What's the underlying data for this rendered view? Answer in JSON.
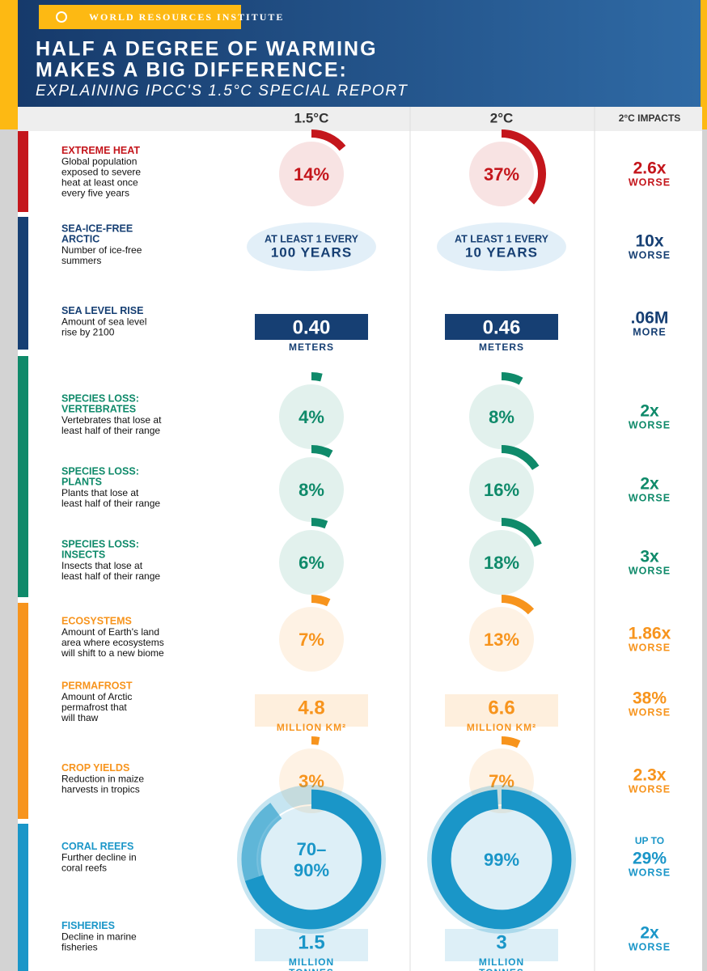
{
  "header": {
    "brand": "WORLD RESOURCES INSTITUTE",
    "title": [
      "HALF A DEGREE OF WARMING",
      "MAKES A BIG DIFFERENCE:"
    ],
    "subtitle": "EXPLAINING IPCC'S 1.5°C SPECIAL REPORT"
  },
  "columns": [
    "1.5°C",
    "2°C",
    "2°C IMPACTS"
  ],
  "rows": [
    {
      "color": "#c4161c",
      "title": [
        "EXTREME HEAT"
      ],
      "desc": [
        "Global population",
        "exposed to severe",
        "heat at least once",
        "every five years"
      ],
      "low": {
        "main": [
          "14%"
        ],
        "gauge": 14
      },
      "high": {
        "main": [
          "37%"
        ],
        "gauge": 37
      },
      "impact": {
        "main": "2.6x",
        "post": "WORSE"
      }
    },
    {
      "color": "#163f73",
      "title": [
        "SEA-ICE-FREE",
        "ARCTIC"
      ],
      "desc": [
        "Number of ice-free",
        "summers"
      ],
      "low": {
        "top": "AT LEAST 1 EVERY",
        "main": [
          "100 YEARS"
        ]
      },
      "high": {
        "top": "AT LEAST 1 EVERY",
        "main": [
          "10 YEARS"
        ]
      },
      "impact": {
        "main": "10x",
        "post": "WORSE"
      }
    },
    {
      "color": "#163f73",
      "title": [
        "SEA LEVEL RISE"
      ],
      "desc": [
        "Amount of sea level",
        "rise by 2100"
      ],
      "low": {
        "main": [
          "0.40"
        ],
        "unit": [
          "METERS"
        ]
      },
      "high": {
        "main": [
          "0.46"
        ],
        "unit": [
          "METERS"
        ]
      },
      "impact": {
        "main": ".06M",
        "post": "MORE"
      }
    },
    {
      "color": "#0f8a6a",
      "title": [
        "SPECIES LOSS:",
        "VERTEBRATES"
      ],
      "desc": [
        "Vertebrates that lose at",
        "least half of their range"
      ],
      "low": {
        "main": [
          "4%"
        ],
        "gauge": 4
      },
      "high": {
        "main": [
          "8%"
        ],
        "gauge": 8
      },
      "impact": {
        "main": "2x",
        "post": "WORSE"
      }
    },
    {
      "color": "#0f8a6a",
      "title": [
        "SPECIES LOSS:",
        "PLANTS"
      ],
      "desc": [
        "Plants that lose at",
        "least half of their range"
      ],
      "low": {
        "main": [
          "8%"
        ],
        "gauge": 8
      },
      "high": {
        "main": [
          "16%"
        ],
        "gauge": 16
      },
      "impact": {
        "main": "2x",
        "post": "WORSE"
      }
    },
    {
      "color": "#0f8a6a",
      "title": [
        "SPECIES LOSS:",
        "INSECTS"
      ],
      "desc": [
        "Insects that lose at",
        "least half of their range"
      ],
      "low": {
        "main": [
          "6%"
        ],
        "gauge": 6
      },
      "high": {
        "main": [
          "18%"
        ],
        "gauge": 18
      },
      "impact": {
        "main": "3x",
        "post": "WORSE"
      }
    },
    {
      "color": "#f7941d",
      "title": [
        "ECOSYSTEMS"
      ],
      "desc": [
        "Amount of Earth's land",
        "area where ecosystems",
        "will shift to a new biome"
      ],
      "low": {
        "main": [
          "7%"
        ],
        "gauge": 7
      },
      "high": {
        "main": [
          "13%"
        ],
        "gauge": 13
      },
      "impact": {
        "main": "1.86x",
        "post": "WORSE"
      }
    },
    {
      "color": "#f7941d",
      "title": [
        "PERMAFROST"
      ],
      "desc": [
        "Amount of Arctic",
        "permafrost that",
        "will thaw"
      ],
      "low": {
        "main": [
          "4.8"
        ],
        "unit": [
          "MILLION KM²"
        ]
      },
      "high": {
        "main": [
          "6.6"
        ],
        "unit": [
          "MILLION KM²"
        ]
      },
      "impact": {
        "main": "38%",
        "post": "WORSE"
      }
    },
    {
      "color": "#f7941d",
      "title": [
        "CROP YIELDS"
      ],
      "desc": [
        "Reduction in maize",
        "harvests in tropics"
      ],
      "low": {
        "main": [
          "3%"
        ],
        "gauge": 3
      },
      "high": {
        "main": [
          "7%"
        ],
        "gauge": 7
      },
      "impact": {
        "main": "2.3x",
        "post": "WORSE"
      }
    },
    {
      "color": "#1a96c8",
      "title": [
        "CORAL REEFS"
      ],
      "desc": [
        "Further decline in",
        "coral reefs"
      ],
      "low": {
        "main": [
          "70–",
          "90%"
        ],
        "gauge": [
          70,
          90
        ]
      },
      "high": {
        "main": [
          "99%"
        ],
        "gauge": 99
      },
      "impact": {
        "pre": "UP TO",
        "main": "29%",
        "post": "WORSE"
      }
    },
    {
      "color": "#1a96c8",
      "title": [
        "FISHERIES"
      ],
      "desc": [
        "Decline in marine",
        "fisheries"
      ],
      "low": {
        "main": [
          "1.5"
        ],
        "unit": [
          "MILLION",
          "TONNES"
        ]
      },
      "high": {
        "main": [
          "3"
        ],
        "unit": [
          "MILLION",
          "TONNES"
        ]
      },
      "impact": {
        "main": "2x",
        "post": "WORSE"
      }
    }
  ]
}
